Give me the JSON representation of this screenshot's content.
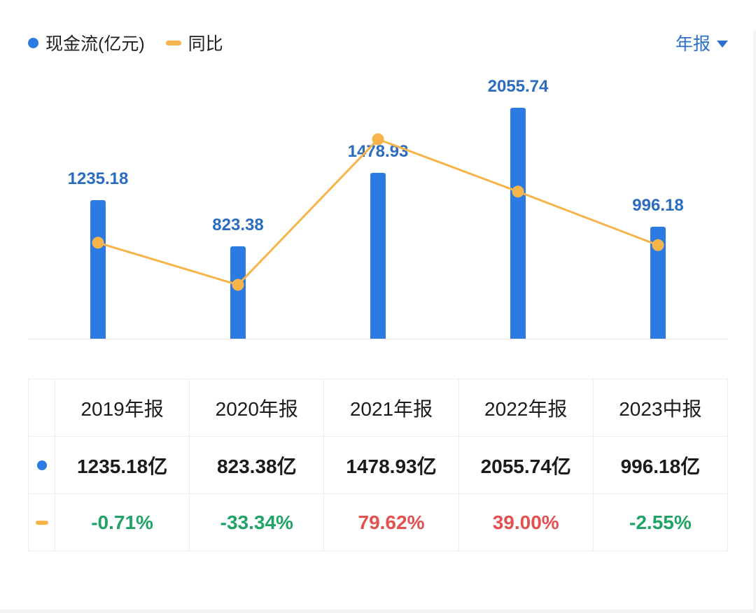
{
  "legend": {
    "series1_label": "现金流(亿元)",
    "series2_label": "同比"
  },
  "period_selector": {
    "label": "年报"
  },
  "colors": {
    "bar_blue": "#2b7be2",
    "line_yellow": "#f6b44a",
    "label_blue": "#2b6cc0",
    "period_blue": "#2b6fce",
    "up_red": "#e25050",
    "down_green": "#21a366"
  },
  "chart_data": {
    "type": "combo",
    "categories": [
      "2019年报",
      "2020年报",
      "2021年报",
      "2022年报",
      "2023中报"
    ],
    "series": [
      {
        "name": "现金流(亿元)",
        "type": "bar",
        "values": [
          1235.18,
          823.38,
          1478.93,
          2055.74,
          996.18
        ],
        "labels": [
          "1235.18",
          "823.38",
          "1478.93",
          "2055.74",
          "996.18"
        ]
      },
      {
        "name": "同比",
        "type": "line",
        "values": [
          -0.71,
          -33.34,
          79.62,
          39.0,
          -2.55
        ]
      }
    ],
    "ylim_bar": [
      0,
      2055.74
    ],
    "ylim_line": [
      -33.34,
      79.62
    ],
    "legend_position": "top-left",
    "grid": "baseline-only"
  },
  "table": {
    "headers": [
      "2019年报",
      "2020年报",
      "2021年报",
      "2022年报",
      "2023中报"
    ],
    "rows": [
      {
        "icon": "cashflow-dot",
        "values": [
          "1235.18亿",
          "823.38亿",
          "1478.93亿",
          "2055.74亿",
          "996.18亿"
        ],
        "colors": [
          "dark",
          "dark",
          "dark",
          "dark",
          "dark"
        ]
      },
      {
        "icon": "yoy-dash",
        "values": [
          "-0.71%",
          "-33.34%",
          "79.62%",
          "39.00%",
          "-2.55%"
        ],
        "colors": [
          "green",
          "green",
          "red",
          "red",
          "green"
        ]
      }
    ]
  }
}
